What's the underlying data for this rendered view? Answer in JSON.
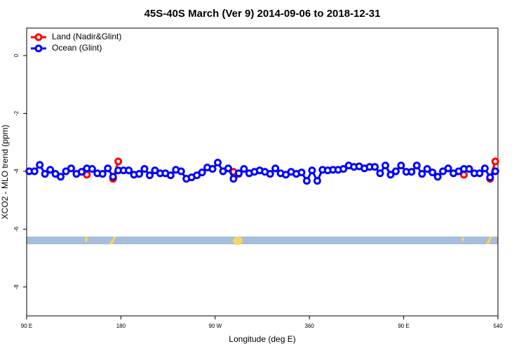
{
  "chart_data": {
    "type": "line",
    "title": "45S-40S March (Ver 9)   2014-09-06 to 2018-12-31",
    "xlabel": "Longitude (deg E)",
    "ylabel": "XCO2 - MLO trend (ppm)",
    "xlim": [
      90,
      540
    ],
    "ylim": [
      -9,
      0.95
    ],
    "xticks": [
      {
        "value": 90,
        "label": "90 E"
      },
      180,
      {
        "value": 270,
        "label": "90 W"
      },
      360,
      {
        "value": 450,
        "label": "90 E"
      },
      540
    ],
    "yticks": [
      0,
      -2,
      -4,
      -6,
      -8
    ],
    "legend": "top-left",
    "series": [
      {
        "name": "Land (Nadir&Glint)",
        "color": "#ff0000",
        "x": [
          147.5,
          152.5,
          172.5,
          177.5,
          182.5,
          287.5,
          292.5,
          297.5,
          507.5,
          512.5,
          532.5,
          537.5
        ],
        "values": [
          -4.12,
          null,
          -4.26,
          -3.66,
          null,
          -4.02,
          -4.09,
          null,
          -4.12,
          null,
          -4.26,
          -3.66
        ]
      },
      {
        "name": "Ocean (Glint)",
        "color": "#0000ff",
        "x": [
          92.5,
          97.5,
          102.5,
          107.5,
          112.5,
          117.5,
          122.5,
          127.5,
          132.5,
          137.5,
          142.5,
          147.5,
          152.5,
          157.5,
          162.5,
          167.5,
          172.5,
          177.5,
          182.5,
          187.5,
          192.5,
          197.5,
          202.5,
          207.5,
          212.5,
          217.5,
          222.5,
          227.5,
          232.5,
          237.5,
          242.5,
          247.5,
          252.5,
          257.5,
          262.5,
          267.5,
          272.5,
          277.5,
          282.5,
          287.5,
          292.5,
          297.5,
          302.5,
          307.5,
          312.5,
          317.5,
          322.5,
          327.5,
          332.5,
          337.5,
          342.5,
          347.5,
          352.5,
          357.5,
          362.5,
          367.5,
          372.5,
          377.5,
          382.5,
          387.5,
          392.5,
          397.5,
          402.5,
          407.5,
          412.5,
          417.5,
          422.5,
          427.5,
          432.5,
          437.5,
          442.5,
          447.5,
          452.5,
          457.5,
          462.5,
          467.5,
          472.5,
          477.5,
          482.5,
          487.5,
          492.5,
          497.5,
          502.5,
          507.5,
          512.5,
          517.5,
          522.5,
          527.5,
          532.5,
          537.5
        ],
        "values": [
          -4.0,
          -4.0,
          -3.78,
          -4.09,
          -3.95,
          -4.09,
          -4.19,
          -4.0,
          -3.9,
          -4.09,
          -4.02,
          -3.9,
          -3.92,
          -4.07,
          -4.09,
          -3.9,
          -4.19,
          -3.97,
          -3.97,
          -3.97,
          -4.12,
          -4.09,
          -3.92,
          -4.14,
          -3.97,
          -4.07,
          -4.07,
          -4.14,
          -3.95,
          -4.0,
          -4.26,
          -4.21,
          -4.14,
          -4.04,
          -3.87,
          -3.92,
          -3.7,
          -4.0,
          -3.9,
          -4.26,
          -4.07,
          -3.92,
          -4.07,
          -4.02,
          -3.97,
          -4.02,
          -4.09,
          -3.9,
          -4.07,
          -4.12,
          -4.02,
          -4.09,
          -4.04,
          -4.33,
          -3.97,
          -4.33,
          -3.95,
          -3.97,
          -3.95,
          -3.95,
          -3.92,
          -3.8,
          -3.85,
          -3.83,
          -3.9,
          -3.85,
          -3.85,
          -4.07,
          -3.8,
          -4.12,
          -4.0,
          -3.8,
          -4.02,
          -4.02,
          -3.8,
          -4.09,
          -3.92,
          -4.04,
          -4.19,
          -4.0,
          -3.9,
          -4.07,
          -4.0,
          -3.92,
          -3.92,
          -4.07,
          -4.07,
          -3.9,
          -4.21,
          -4.0
        ]
      }
    ]
  }
}
